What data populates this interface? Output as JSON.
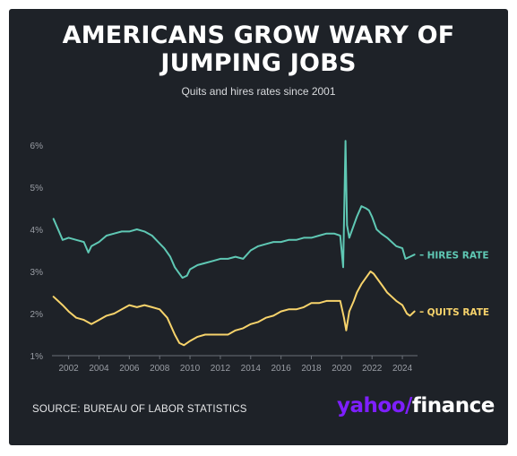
{
  "header": {
    "title_line1": "AMERICANS GROW WARY OF",
    "title_line2": "JUMPING JOBS",
    "subtitle": "Quits and hires rates since 2001"
  },
  "footer": {
    "source": "SOURCE: BUREAU OF LABOR STATISTICS",
    "brand_yahoo": "yahoo",
    "brand_slash": "/",
    "brand_finance": "finance"
  },
  "colors": {
    "background": "#1e2228",
    "hires": "#5fc8b4",
    "quits": "#f7d36b",
    "axis_text": "#9a9ea5",
    "brand": "#7e1fff"
  },
  "chart_data": {
    "type": "line",
    "title": "AMERICANS GROW WARY OF JUMPING JOBS",
    "subtitle": "Quits and hires rates since 2001",
    "xlabel": "",
    "ylabel": "",
    "xlim": [
      2000.9,
      2025.0
    ],
    "ylim": [
      1,
      6
    ],
    "y_ticks": [
      1,
      2,
      3,
      4,
      5,
      6
    ],
    "y_tick_labels": [
      "1%",
      "2%",
      "3%",
      "4%",
      "5%",
      "6%"
    ],
    "x_ticks": [
      2002,
      2004,
      2006,
      2008,
      2010,
      2012,
      2014,
      2016,
      2018,
      2020,
      2022,
      2024
    ],
    "x_tick_labels": [
      "2002",
      "2004",
      "2006",
      "2008",
      "2010",
      "2012",
      "2014",
      "2016",
      "2018",
      "2020",
      "2022",
      "2024"
    ],
    "grid": false,
    "legend": "end-of-line labels",
    "series": [
      {
        "name": "HIRES RATE",
        "x": [
          2001.0,
          2001.3,
          2001.6,
          2002.0,
          2002.5,
          2003.0,
          2003.3,
          2003.5,
          2004.0,
          2004.5,
          2005.0,
          2005.5,
          2006.0,
          2006.5,
          2007.0,
          2007.5,
          2007.9,
          2008.3,
          2008.7,
          2009.0,
          2009.3,
          2009.5,
          2009.8,
          2010.0,
          2010.5,
          2011.0,
          2011.5,
          2012.0,
          2012.5,
          2013.0,
          2013.5,
          2014.0,
          2014.5,
          2015.0,
          2015.5,
          2016.0,
          2016.5,
          2017.0,
          2017.5,
          2018.0,
          2018.5,
          2019.0,
          2019.5,
          2019.9,
          2020.1,
          2020.25,
          2020.35,
          2020.5,
          2020.7,
          2021.0,
          2021.3,
          2021.6,
          2021.8,
          2022.0,
          2022.3,
          2022.6,
          2023.0,
          2023.3,
          2023.6,
          2024.0,
          2024.2,
          2024.5,
          2024.8
        ],
        "values": [
          4.25,
          4.0,
          3.75,
          3.8,
          3.75,
          3.7,
          3.45,
          3.6,
          3.7,
          3.85,
          3.9,
          3.95,
          3.95,
          4.0,
          3.95,
          3.85,
          3.7,
          3.55,
          3.35,
          3.1,
          2.95,
          2.85,
          2.9,
          3.05,
          3.15,
          3.2,
          3.25,
          3.3,
          3.3,
          3.35,
          3.3,
          3.5,
          3.6,
          3.65,
          3.7,
          3.7,
          3.75,
          3.75,
          3.8,
          3.8,
          3.85,
          3.9,
          3.9,
          3.85,
          3.1,
          6.1,
          4.1,
          3.8,
          4.0,
          4.3,
          4.55,
          4.5,
          4.45,
          4.3,
          4.0,
          3.9,
          3.8,
          3.7,
          3.6,
          3.55,
          3.3,
          3.35,
          3.4
        ]
      },
      {
        "name": "QUITS RATE",
        "x": [
          2001.0,
          2001.3,
          2001.6,
          2002.0,
          2002.5,
          2003.0,
          2003.5,
          2004.0,
          2004.5,
          2005.0,
          2005.5,
          2006.0,
          2006.5,
          2007.0,
          2007.5,
          2008.0,
          2008.5,
          2009.0,
          2009.3,
          2009.6,
          2010.0,
          2010.5,
          2011.0,
          2011.5,
          2012.0,
          2012.5,
          2013.0,
          2013.5,
          2014.0,
          2014.5,
          2015.0,
          2015.5,
          2016.0,
          2016.5,
          2017.0,
          2017.5,
          2018.0,
          2018.5,
          2019.0,
          2019.5,
          2019.9,
          2020.15,
          2020.3,
          2020.5,
          2020.8,
          2021.0,
          2021.3,
          2021.6,
          2021.9,
          2022.1,
          2022.4,
          2022.7,
          2023.0,
          2023.3,
          2023.6,
          2024.0,
          2024.3,
          2024.5,
          2024.8
        ],
        "values": [
          2.4,
          2.3,
          2.2,
          2.05,
          1.9,
          1.85,
          1.75,
          1.85,
          1.95,
          2.0,
          2.1,
          2.2,
          2.15,
          2.2,
          2.15,
          2.1,
          1.9,
          1.5,
          1.3,
          1.25,
          1.35,
          1.45,
          1.5,
          1.5,
          1.5,
          1.5,
          1.6,
          1.65,
          1.75,
          1.8,
          1.9,
          1.95,
          2.05,
          2.1,
          2.1,
          2.15,
          2.25,
          2.25,
          2.3,
          2.3,
          2.3,
          1.9,
          1.6,
          2.05,
          2.3,
          2.5,
          2.7,
          2.85,
          3.0,
          2.95,
          2.8,
          2.65,
          2.5,
          2.4,
          2.3,
          2.2,
          2.0,
          1.95,
          2.05
        ]
      }
    ]
  }
}
